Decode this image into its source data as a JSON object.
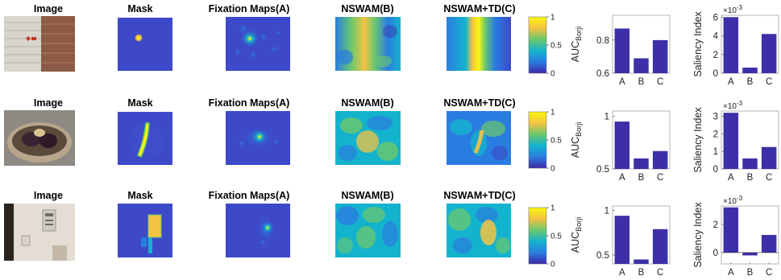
{
  "colors": {
    "map_bg": "#3d49c9",
    "bar_fill": "#3c2fa8",
    "colorbar_stops": [
      "#3e26a8",
      "#2a7de0",
      "#14b3cd",
      "#6bc86c",
      "#f4c242",
      "#f9f70f"
    ]
  },
  "columns": {
    "image": "Image",
    "mask": "Mask",
    "fixation": "Fixation Maps(A)",
    "nswam": "NSWAM(B)",
    "nswam_td": "NSWAM+TD(C)"
  },
  "colorbar_ticks": [
    "1",
    "0.5",
    "0"
  ],
  "auc_axis_label": {
    "main": "AUC",
    "sub": "Borji"
  },
  "saliency_axis_label": "Saliency Index",
  "exponent_label": "×10",
  "exponent_power": "-3",
  "rows": [
    {
      "auc": {
        "type": "bar",
        "categories": [
          "A",
          "B",
          "C"
        ],
        "values": [
          0.87,
          0.69,
          0.8
        ],
        "ylim": [
          0.6,
          0.95
        ],
        "ytick_labels": [
          "0.8",
          "0.6"
        ],
        "ytick_values": [
          0.8,
          0.6
        ]
      },
      "saliency": {
        "type": "bar",
        "categories": [
          "A",
          "B",
          "C"
        ],
        "values": [
          6.0,
          0.6,
          4.2
        ],
        "ylim": [
          0,
          6.2
        ],
        "ytick_labels": [
          "6",
          "4",
          "2",
          "0"
        ],
        "ytick_values": [
          6,
          4,
          2,
          0
        ]
      }
    },
    {
      "auc": {
        "type": "bar",
        "categories": [
          "A",
          "B",
          "C"
        ],
        "values": [
          0.95,
          0.6,
          0.67
        ],
        "ylim": [
          0.5,
          1.05
        ],
        "ytick_labels": [
          "1",
          "0.5"
        ],
        "ytick_values": [
          1.0,
          0.5
        ]
      },
      "saliency": {
        "type": "bar",
        "categories": [
          "A",
          "B",
          "C"
        ],
        "values": [
          3.2,
          0.6,
          1.25
        ],
        "ylim": [
          0,
          3.3
        ],
        "ytick_labels": [
          "3",
          "2",
          "1",
          "0"
        ],
        "ytick_values": [
          3,
          2,
          1,
          0
        ]
      }
    },
    {
      "auc": {
        "type": "bar",
        "categories": [
          "A",
          "B",
          "C"
        ],
        "values": [
          0.94,
          0.45,
          0.79
        ],
        "ylim": [
          0.4,
          1.05
        ],
        "ytick_labels": [
          "1",
          "0.5"
        ],
        "ytick_values": [
          1.0,
          0.5
        ]
      },
      "saliency": {
        "type": "bar",
        "categories": [
          "A",
          "B",
          "C"
        ],
        "values": [
          3.2,
          -0.2,
          1.25
        ],
        "ylim": [
          -0.8,
          3.3
        ],
        "ytick_labels": [
          "2",
          "0"
        ],
        "ytick_values": [
          2,
          0
        ]
      }
    }
  ]
}
